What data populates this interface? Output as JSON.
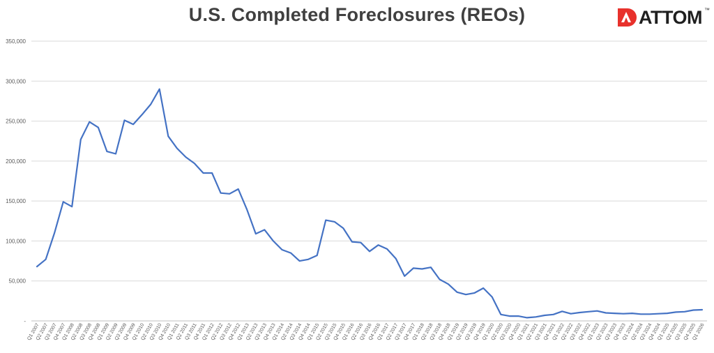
{
  "header": {
    "title": "U.S. Completed Foreclosures (REOs)",
    "logo_text": "ATTOM",
    "logo_tm": "™"
  },
  "colors": {
    "line": "#4472C4",
    "grid": "#d9d9d9",
    "logo_red": "#e8312c",
    "title": "#404040"
  },
  "chart_data": {
    "type": "line",
    "title": "U.S. Completed Foreclosures (REOs)",
    "xlabel": "",
    "ylabel": "",
    "ylim": [
      0,
      350000
    ],
    "yticks": [
      0,
      50000,
      100000,
      150000,
      200000,
      250000,
      300000,
      350000
    ],
    "ytick_labels": [
      "-",
      "50,000",
      "100,000",
      "150,000",
      "200,000",
      "250,000",
      "300,000",
      "350,000"
    ],
    "grid": true,
    "legend": "none",
    "categories": [
      "Q1 2007",
      "Q2 2007",
      "Q3 2007",
      "Q4 2007",
      "Q1 2008",
      "Q2 2008",
      "Q3 2008",
      "Q4 2008",
      "Q1 2009",
      "Q2 2009",
      "Q3 2009",
      "Q4 2009",
      "Q1 2010",
      "Q2 2010",
      "Q3 2010",
      "Q4 2010",
      "Q1 2011",
      "Q2 2011",
      "Q3 2011",
      "Q4 2011",
      "Q1 2012",
      "Q2 2012",
      "Q3 2012",
      "Q4 2012",
      "Q1 2013",
      "Q2 2013",
      "Q3 2013",
      "Q4 2013",
      "Q1 2014",
      "Q2 2014",
      "Q3 2014",
      "Q4 2014",
      "Q1 2015",
      "Q2 2015",
      "Q3 2015",
      "Q4 2015",
      "Q1 2016",
      "Q2 2016",
      "Q3 2016",
      "Q4 2016",
      "Q1 2017",
      "Q2 2017",
      "Q3 2017",
      "Q4 2017",
      "Q1 2018",
      "Q2 2018",
      "Q3 2018",
      "Q4 2018",
      "Q1 2019",
      "Q2 2019",
      "Q3 2019",
      "Q4 2019",
      "Q1 2020",
      "Q2 2020",
      "Q3 2020",
      "Q4 2020",
      "Q1 2021",
      "Q2 2021",
      "Q3 2021",
      "Q4 2021",
      "Q1 2022",
      "Q2 2022",
      "Q3 2022",
      "Q4 2022",
      "Q1 2023",
      "Q2 2023",
      "Q3 2023",
      "Q4 2023",
      "Q1 2024",
      "Q2 2024",
      "Q3 2024",
      "Q4 2024",
      "Q1 2025",
      "Q2 2025",
      "Q3 2025",
      "Q4 2025",
      "Q1 2026"
    ],
    "series": [
      {
        "values": [
          68000,
          77000,
          110000,
          149000,
          143000,
          227000,
          249000,
          242000,
          212000,
          209000,
          251000,
          246000,
          258000,
          271000,
          290000,
          231000,
          216000,
          205000,
          197000,
          185000,
          185000,
          160000,
          159000,
          165000,
          139000,
          109000,
          114000,
          100000,
          89000,
          85000,
          75000,
          77000,
          82000,
          126000,
          124000,
          116000,
          99000,
          98000,
          87000,
          95000,
          90000,
          78000,
          56000,
          66000,
          65000,
          67000,
          52000,
          46000,
          36000,
          33000,
          35000,
          41000,
          30000,
          8000,
          6000,
          6000,
          4000,
          5000,
          7000,
          8000,
          12000,
          9000,
          10500,
          11500,
          12500,
          10000,
          9500,
          9000,
          9500,
          8500,
          8500,
          9000,
          9500,
          11000,
          11500,
          13500,
          14000
        ]
      }
    ]
  }
}
